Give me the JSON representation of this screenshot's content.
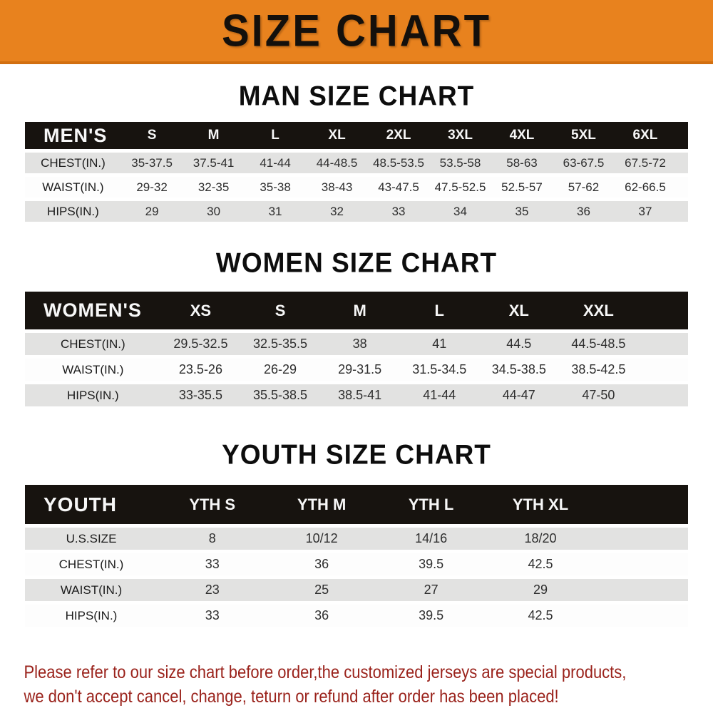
{
  "banner": {
    "title": "SIZE CHART"
  },
  "colors": {
    "banner_orange": "#E8821E",
    "header_black": "#17130F",
    "stripe_gray": "#E2E2E1",
    "footer_red": "#9A221B"
  },
  "sections": [
    {
      "title": "MAN SIZE CHART",
      "table": {
        "header_label": "MEN'S",
        "columns": [
          "S",
          "M",
          "L",
          "XL",
          "2XL",
          "3XL",
          "4XL",
          "5XL",
          "6XL"
        ],
        "rows": [
          {
            "label": "CHEST(IN.)",
            "values": [
              "35-37.5",
              "37.5-41",
              "41-44",
              "44-48.5",
              "48.5-53.5",
              "53.5-58",
              "58-63",
              "63-67.5",
              "67.5-72"
            ]
          },
          {
            "label": "WAIST(IN.)",
            "values": [
              "29-32",
              "32-35",
              "35-38",
              "38-43",
              "43-47.5",
              "47.5-52.5",
              "52.5-57",
              "57-62",
              "62-66.5"
            ]
          },
          {
            "label": "HIPS(IN.)",
            "values": [
              "29",
              "30",
              "31",
              "32",
              "33",
              "34",
              "35",
              "36",
              "37"
            ]
          }
        ]
      }
    },
    {
      "title": "WOMEN SIZE CHART",
      "table": {
        "header_label": "WOMEN'S",
        "columns": [
          "XS",
          "S",
          "M",
          "L",
          "XL",
          "XXL"
        ],
        "rows": [
          {
            "label": "CHEST(IN.)",
            "values": [
              "29.5-32.5",
              "32.5-35.5",
              "38",
              "41",
              "44.5",
              "44.5-48.5"
            ]
          },
          {
            "label": "WAIST(IN.)",
            "values": [
              "23.5-26",
              "26-29",
              "29-31.5",
              "31.5-34.5",
              "34.5-38.5",
              "38.5-42.5"
            ]
          },
          {
            "label": "HIPS(IN.)",
            "values": [
              "33-35.5",
              "35.5-38.5",
              "38.5-41",
              "41-44",
              "44-47",
              "47-50"
            ]
          }
        ]
      }
    },
    {
      "title": "YOUTH SIZE CHART",
      "table": {
        "header_label": "YOUTH",
        "columns": [
          "YTH S",
          "YTH M",
          "YTH L",
          "YTH XL"
        ],
        "rows": [
          {
            "label": "U.S.SIZE",
            "values": [
              "8",
              "10/12",
              "14/16",
              "18/20"
            ]
          },
          {
            "label": "CHEST(IN.)",
            "values": [
              "33",
              "36",
              "39.5",
              "42.5"
            ]
          },
          {
            "label": "WAIST(IN.)",
            "values": [
              "23",
              "25",
              "27",
              "29"
            ]
          },
          {
            "label": "HIPS(IN.)",
            "values": [
              "33",
              "36",
              "39.5",
              "42.5"
            ]
          }
        ]
      }
    }
  ],
  "footer": {
    "line1": "Please refer to our size chart before order,the customized jerseys are special products,",
    "line2": "we don't accept cancel, change, teturn or refund after order has been placed!"
  }
}
